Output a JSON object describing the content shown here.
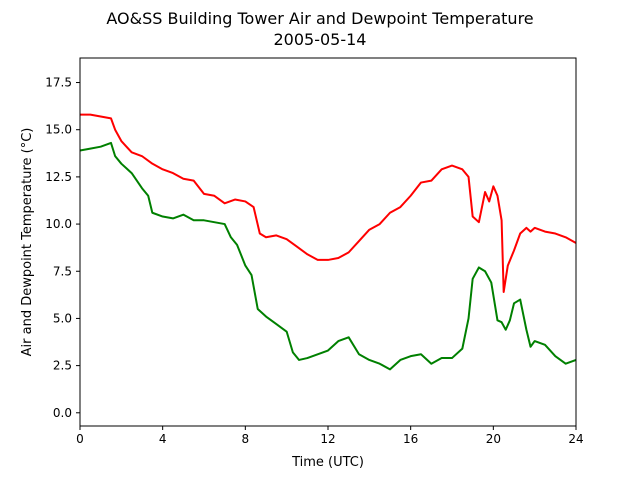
{
  "chart_data": {
    "type": "line",
    "title": "AO&SS Building Tower Air and Dewpoint Temperature",
    "subtitle": "2005-05-14",
    "xlabel": "Time (UTC)",
    "ylabel": "Air and Dewpoint Temperature (°C)",
    "xlim": [
      0,
      24
    ],
    "ylim": [
      -0.7,
      18.8
    ],
    "xticks": [
      0,
      4,
      8,
      12,
      16,
      20,
      24
    ],
    "xtick_labels": [
      "0",
      "4",
      "8",
      "12",
      "16",
      "20",
      "24"
    ],
    "yticks": [
      0.0,
      2.5,
      5.0,
      7.5,
      10.0,
      12.5,
      15.0,
      17.5
    ],
    "ytick_labels": [
      "0.0",
      "2.5",
      "5.0",
      "7.5",
      "10.0",
      "12.5",
      "15.0",
      "17.5"
    ],
    "grid": false,
    "series": [
      {
        "color": "#ff0000",
        "x": [
          0,
          0.5,
          1.0,
          1.5,
          1.7,
          2.0,
          2.5,
          3.0,
          3.5,
          4.0,
          4.5,
          5.0,
          5.5,
          6.0,
          6.5,
          7.0,
          7.5,
          8.0,
          8.4,
          8.7,
          9.0,
          9.5,
          10.0,
          10.5,
          11.0,
          11.5,
          12.0,
          12.5,
          13.0,
          13.5,
          14.0,
          14.5,
          15.0,
          15.5,
          16.0,
          16.5,
          17.0,
          17.5,
          18.0,
          18.5,
          18.8,
          19.0,
          19.3,
          19.6,
          19.8,
          20.0,
          20.2,
          20.4,
          20.5,
          20.7,
          21.0,
          21.3,
          21.6,
          21.8,
          22.0,
          22.5,
          23.0,
          23.5,
          24.0
        ],
        "values": [
          15.8,
          15.8,
          15.7,
          15.6,
          15.0,
          14.4,
          13.8,
          13.6,
          13.2,
          12.9,
          12.7,
          12.4,
          12.3,
          11.6,
          11.5,
          11.1,
          11.3,
          11.2,
          10.9,
          9.5,
          9.3,
          9.4,
          9.2,
          8.8,
          8.4,
          8.1,
          8.1,
          8.2,
          8.5,
          9.1,
          9.7,
          10.0,
          10.6,
          10.9,
          11.5,
          12.2,
          12.3,
          12.9,
          13.1,
          12.9,
          12.5,
          10.4,
          10.1,
          11.7,
          11.2,
          12.0,
          11.5,
          10.2,
          6.4,
          7.8,
          8.6,
          9.5,
          9.8,
          9.6,
          9.8,
          9.6,
          9.5,
          9.3,
          9.0
        ]
      },
      {
        "color": "#008000",
        "x": [
          0,
          0.5,
          1.0,
          1.5,
          1.7,
          2.0,
          2.5,
          3.0,
          3.3,
          3.5,
          4.0,
          4.5,
          5.0,
          5.5,
          6.0,
          6.5,
          7.0,
          7.3,
          7.6,
          8.0,
          8.3,
          8.6,
          8.8,
          9.0,
          9.5,
          10.0,
          10.3,
          10.6,
          11.0,
          11.5,
          12.0,
          12.5,
          13.0,
          13.5,
          14.0,
          14.5,
          15.0,
          15.5,
          16.0,
          16.5,
          17.0,
          17.5,
          18.0,
          18.5,
          18.8,
          19.0,
          19.3,
          19.6,
          19.9,
          20.2,
          20.4,
          20.6,
          20.8,
          21.0,
          21.3,
          21.6,
          21.8,
          22.0,
          22.5,
          23.0,
          23.5,
          24.0
        ],
        "values": [
          13.9,
          14.0,
          14.1,
          14.3,
          13.6,
          13.2,
          12.7,
          11.9,
          11.5,
          10.6,
          10.4,
          10.3,
          10.5,
          10.2,
          10.2,
          10.1,
          10.0,
          9.3,
          8.9,
          7.8,
          7.3,
          5.5,
          5.3,
          5.1,
          4.7,
          4.3,
          3.2,
          2.8,
          2.9,
          3.1,
          3.3,
          3.8,
          4.0,
          3.1,
          2.8,
          2.6,
          2.3,
          2.8,
          3.0,
          3.1,
          2.6,
          2.9,
          2.9,
          3.4,
          5.0,
          7.1,
          7.7,
          7.5,
          6.9,
          4.9,
          4.8,
          4.4,
          4.9,
          5.8,
          6.0,
          4.4,
          3.5,
          3.8,
          3.6,
          3.0,
          2.6,
          2.8
        ]
      }
    ]
  }
}
